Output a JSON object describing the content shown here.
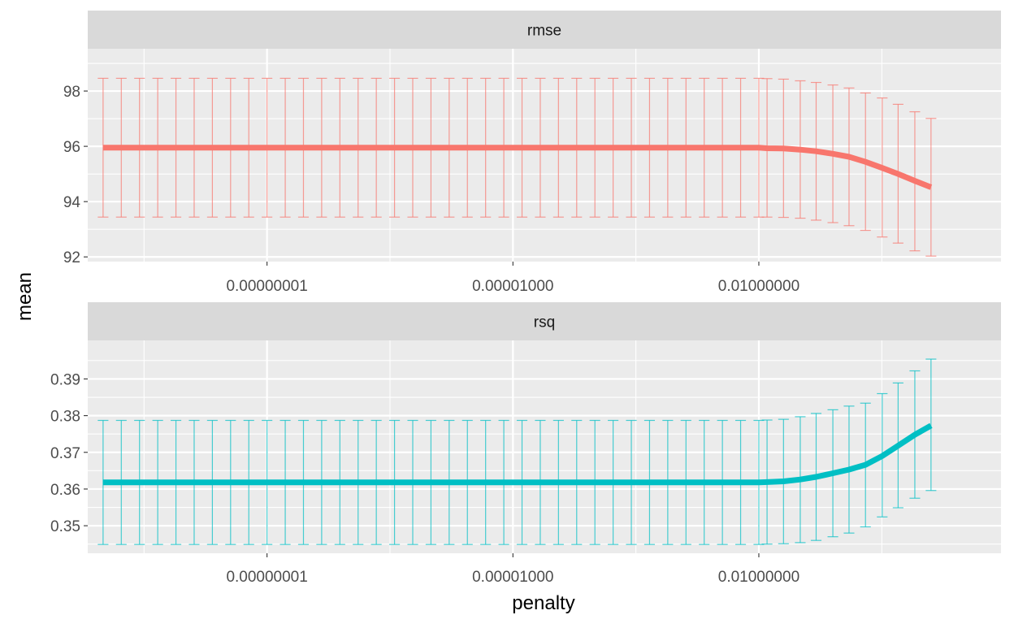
{
  "chart_data": {
    "type": "line",
    "x_scale": "log10",
    "xlabel": "penalty",
    "ylabel": "mean",
    "x_ticks": [
      1e-08,
      1e-05,
      0.01
    ],
    "x_tick_labels": [
      "0.00000001",
      "0.00001000",
      "0.01000000"
    ],
    "xlim": [
      6.5e-11,
      9.0
    ],
    "error_bar_half_width_decades": 0.065,
    "panels": [
      {
        "strip_label": "rmse",
        "color": "#F8766D",
        "ylim": [
          91.83,
          99.53
        ],
        "y_ticks": [
          92,
          94,
          96,
          98
        ],
        "y_tick_labels": [
          "92",
          "94",
          "96",
          "98"
        ],
        "points": [
          {
            "x": 1e-10,
            "y": 95.95,
            "lo": 93.44,
            "hi": 98.46
          },
          {
            "x": 0.01,
            "y": 95.95,
            "lo": 93.44,
            "hi": 98.46
          },
          {
            "x": 0.0126,
            "y": 95.93,
            "lo": 93.44,
            "hi": 98.45
          },
          {
            "x": 0.02,
            "y": 95.92,
            "lo": 93.43,
            "hi": 98.43
          },
          {
            "x": 0.032,
            "y": 95.88,
            "lo": 93.4,
            "hi": 98.37
          },
          {
            "x": 0.05,
            "y": 95.82,
            "lo": 93.33,
            "hi": 98.31
          },
          {
            "x": 0.08,
            "y": 95.73,
            "lo": 93.24,
            "hi": 98.22
          },
          {
            "x": 0.126,
            "y": 95.62,
            "lo": 93.13,
            "hi": 98.11
          },
          {
            "x": 0.2,
            "y": 95.44,
            "lo": 92.96,
            "hi": 97.93
          },
          {
            "x": 0.32,
            "y": 95.22,
            "lo": 92.72,
            "hi": 97.75
          },
          {
            "x": 0.5,
            "y": 95.0,
            "lo": 92.5,
            "hi": 97.52
          },
          {
            "x": 0.8,
            "y": 94.75,
            "lo": 92.22,
            "hi": 97.25
          },
          {
            "x": 1.26,
            "y": 94.52,
            "lo": 92.03,
            "hi": 97.01
          }
        ]
      },
      {
        "strip_label": "rsq",
        "color": "#00BFC4",
        "ylim": [
          0.3425,
          0.4005
        ],
        "y_ticks": [
          0.35,
          0.36,
          0.37,
          0.38,
          0.39
        ],
        "y_tick_labels": [
          "0.35",
          "0.36",
          "0.37",
          "0.38",
          "0.39"
        ],
        "points": [
          {
            "x": 1e-10,
            "y": 0.3618,
            "lo": 0.3449,
            "hi": 0.3787
          },
          {
            "x": 0.01,
            "y": 0.3618,
            "lo": 0.3449,
            "hi": 0.3787
          },
          {
            "x": 0.0126,
            "y": 0.3619,
            "lo": 0.345,
            "hi": 0.3788
          },
          {
            "x": 0.02,
            "y": 0.3621,
            "lo": 0.3451,
            "hi": 0.379
          },
          {
            "x": 0.032,
            "y": 0.3626,
            "lo": 0.3454,
            "hi": 0.3797
          },
          {
            "x": 0.05,
            "y": 0.3633,
            "lo": 0.346,
            "hi": 0.3806
          },
          {
            "x": 0.08,
            "y": 0.3643,
            "lo": 0.347,
            "hi": 0.3816
          },
          {
            "x": 0.126,
            "y": 0.3653,
            "lo": 0.348,
            "hi": 0.3826
          },
          {
            "x": 0.2,
            "y": 0.3666,
            "lo": 0.3497,
            "hi": 0.3834
          },
          {
            "x": 0.32,
            "y": 0.369,
            "lo": 0.3524,
            "hi": 0.386
          },
          {
            "x": 0.5,
            "y": 0.3718,
            "lo": 0.3549,
            "hi": 0.3889
          },
          {
            "x": 0.8,
            "y": 0.3748,
            "lo": 0.3575,
            "hi": 0.3922
          },
          {
            "x": 1.26,
            "y": 0.3773,
            "lo": 0.3596,
            "hi": 0.3954
          }
        ]
      }
    ]
  }
}
